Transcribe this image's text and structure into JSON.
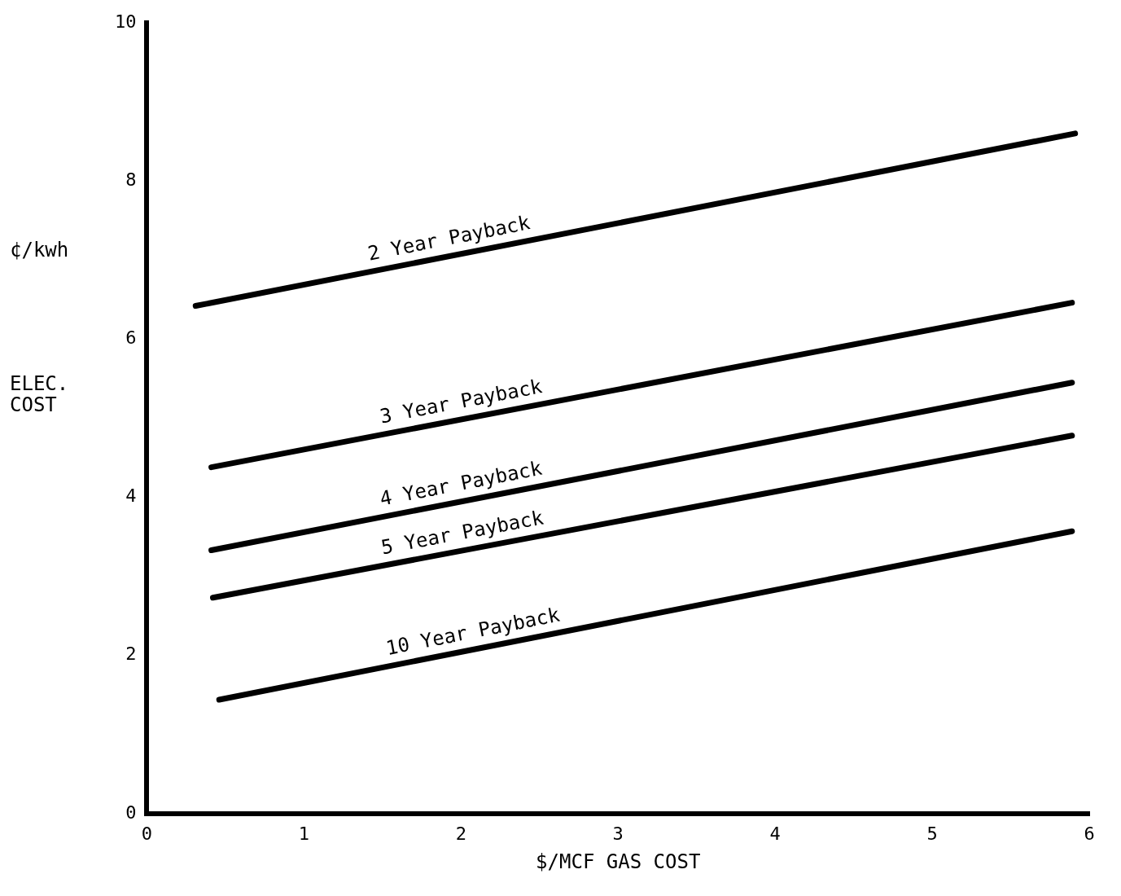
{
  "chart_data": {
    "type": "line",
    "xlabel": "$/MCF GAS COST",
    "ylabel": "¢/kwh",
    "annotations": [
      "ELEC. COST"
    ],
    "xlim": [
      0,
      6
    ],
    "ylim": [
      0,
      10
    ],
    "xticks": [
      0,
      1,
      2,
      3,
      4,
      5,
      6
    ],
    "yticks": [
      0,
      2,
      4,
      6,
      8,
      10
    ],
    "grid": false,
    "legend": false,
    "marker": "none",
    "line_style": "solid",
    "series": [
      {
        "name": "2 Year Payback",
        "color": "#000000",
        "x": [
          0.31,
          5.91
        ],
        "values": [
          6.42,
          8.6
        ]
      },
      {
        "name": "3 Year Payback",
        "color": "#000000",
        "x": [
          0.41,
          5.89
        ],
        "values": [
          4.38,
          6.46
        ]
      },
      {
        "name": "4 Year Payback",
        "color": "#000000",
        "x": [
          0.41,
          5.89
        ],
        "values": [
          3.33,
          5.45
        ]
      },
      {
        "name": "5 Year Payback",
        "color": "#000000",
        "x": [
          0.42,
          5.89
        ],
        "values": [
          2.73,
          4.78
        ]
      },
      {
        "name": "10 Year Payback",
        "color": "#000000",
        "x": [
          0.46,
          5.89
        ],
        "values": [
          1.44,
          3.57
        ]
      }
    ]
  }
}
